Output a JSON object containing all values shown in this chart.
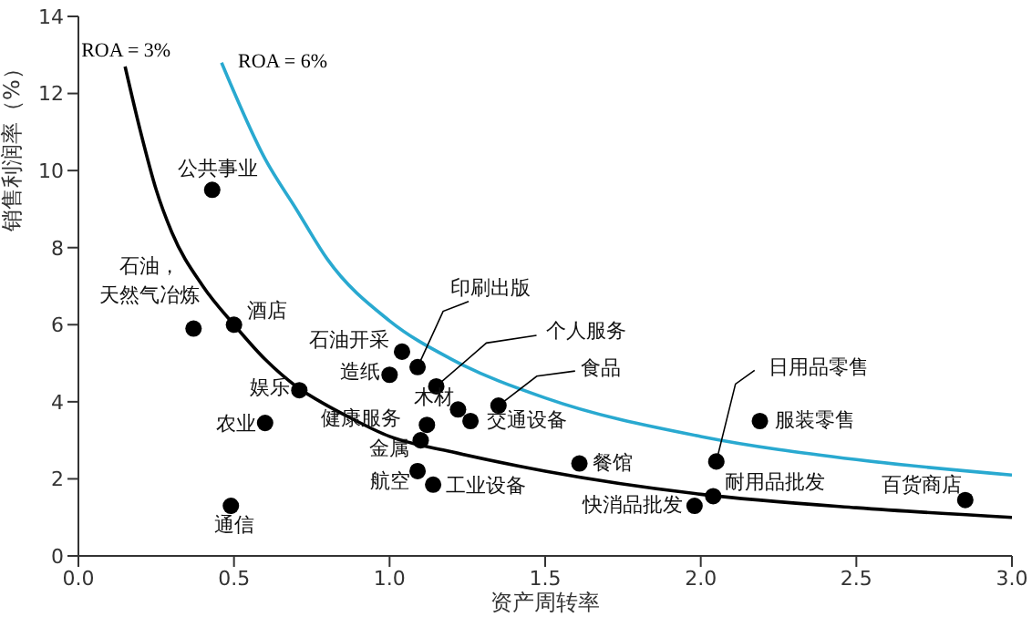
{
  "chart_data": {
    "type": "scatter",
    "xlabel": "资产周转率",
    "ylabel": "销售利润率（%）",
    "xlim": [
      0,
      3
    ],
    "ylim": [
      0,
      14
    ],
    "xticks": [
      {
        "value": 0,
        "label": "0.0"
      },
      {
        "value": 0.5,
        "label": "0.5"
      },
      {
        "value": 1,
        "label": "1.0"
      },
      {
        "value": 1.5,
        "label": "1.5"
      },
      {
        "value": 2,
        "label": "2.0"
      },
      {
        "value": 2.5,
        "label": "2.5"
      },
      {
        "value": 3,
        "label": "3.0"
      }
    ],
    "yticks": [
      0,
      2,
      4,
      6,
      8,
      10,
      12,
      14
    ],
    "marker": "none",
    "series": [
      {
        "type": "line",
        "name": "ROA = 3%",
        "color": "#000000",
        "x": [
          0.15,
          0.2,
          0.25,
          0.3,
          0.4,
          0.5,
          0.6,
          0.7,
          0.8,
          0.87,
          1.0,
          1.2,
          1.5,
          2.0,
          2.5,
          3.0
        ],
        "values": [
          12.7,
          11.0,
          9.5,
          8.4,
          7.0,
          6.0,
          5.1,
          4.4,
          3.9,
          3.6,
          3.1,
          2.7,
          2.2,
          1.6,
          1.25,
          1.0
        ]
      },
      {
        "type": "line",
        "name": "ROA = 6%",
        "color": "#29a9d0",
        "x": [
          0.46,
          0.6,
          0.7,
          0.8,
          1.0,
          1.2,
          1.5,
          2.0,
          2.5,
          3.0
        ],
        "values": [
          12.8,
          10.3,
          9.0,
          7.7,
          6.1,
          5.1,
          4.1,
          3.1,
          2.5,
          2.1
        ]
      },
      {
        "marker": "circle",
        "color": "#000000",
        "x": [
          0.43,
          0.37,
          0.5,
          0.71,
          0.6,
          0.49,
          1.04,
          1.0,
          1.09,
          1.15,
          1.22,
          1.12,
          1.26,
          1.35,
          1.1,
          1.09,
          1.14,
          1.61,
          1.98,
          2.04,
          2.05,
          2.19,
          2.85
        ],
        "values": [
          9.5,
          5.9,
          6.0,
          4.3,
          3.45,
          1.3,
          5.3,
          4.7,
          4.9,
          4.4,
          3.8,
          3.4,
          3.5,
          3.9,
          3.0,
          2.2,
          1.85,
          2.4,
          1.3,
          1.55,
          2.45,
          3.5,
          1.45
        ]
      }
    ],
    "annotations": [
      {
        "text": "公共事业",
        "x": 0.43,
        "y": 9.5
      },
      {
        "text": "石油，天然气冶炼",
        "x": 0.37,
        "y": 5.9
      },
      {
        "text": "酒店",
        "x": 0.5,
        "y": 6.0
      },
      {
        "text": "娱乐",
        "x": 0.71,
        "y": 4.3
      },
      {
        "text": "农业",
        "x": 0.6,
        "y": 3.45
      },
      {
        "text": "通信",
        "x": 0.49,
        "y": 1.3
      },
      {
        "text": "石油开采",
        "x": 1.04,
        "y": 5.3
      },
      {
        "text": "造纸",
        "x": 1.0,
        "y": 4.7
      },
      {
        "text": "印刷出版",
        "x": 1.09,
        "y": 4.9
      },
      {
        "text": "个人服务",
        "x": 1.15,
        "y": 4.4
      },
      {
        "text": "木材",
        "x": 1.22,
        "y": 3.8
      },
      {
        "text": "健康服务",
        "x": 1.12,
        "y": 3.4
      },
      {
        "text": "交通设备",
        "x": 1.26,
        "y": 3.5
      },
      {
        "text": "食品",
        "x": 1.35,
        "y": 3.9
      },
      {
        "text": "金属",
        "x": 1.1,
        "y": 3.0
      },
      {
        "text": "航空",
        "x": 1.09,
        "y": 2.2
      },
      {
        "text": "工业设备",
        "x": 1.14,
        "y": 1.85
      },
      {
        "text": "餐馆",
        "x": 1.61,
        "y": 2.4
      },
      {
        "text": "快消品批发",
        "x": 1.98,
        "y": 1.3
      },
      {
        "text": "耐用品批发",
        "x": 2.04,
        "y": 1.55
      },
      {
        "text": "日用品零售",
        "x": 2.05,
        "y": 2.45
      },
      {
        "text": "服装零售",
        "x": 2.19,
        "y": 3.5
      },
      {
        "text": "百货商店",
        "x": 2.85,
        "y": 1.45
      }
    ]
  }
}
